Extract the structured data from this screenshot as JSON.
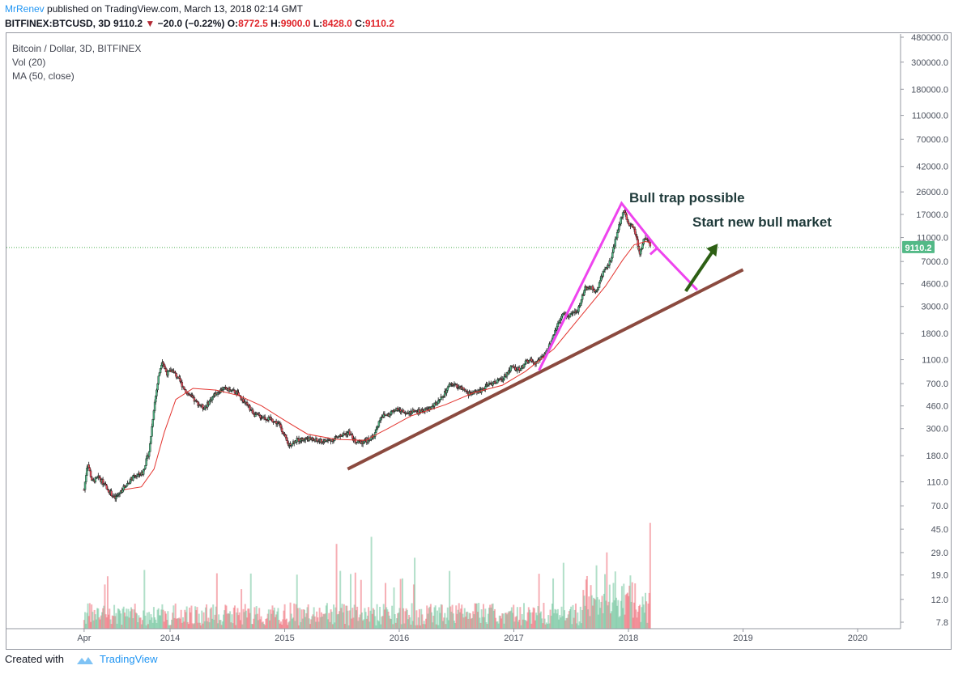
{
  "header": {
    "author": "MrRenev",
    "published_text": "published on TradingView.com, March 13, 2018 02:14 GMT"
  },
  "ticker": {
    "symbol": "BITFINEX:BTCUSD, 3D",
    "last": "9110.2",
    "change": "−20.0 (−0.22%)",
    "open_label": "O:",
    "open": "8772.5",
    "high_label": "H:",
    "high": "9900.0",
    "low_label": "L:",
    "low": "8428.0",
    "close_label": "C:",
    "close": "9110.2"
  },
  "legend": {
    "title": "Bitcoin / Dollar, 3D, BITFINEX",
    "vol": "Vol (20)",
    "ma": "MA (50, close)"
  },
  "footer": {
    "created_with": "Created with",
    "brand": "TradingView"
  },
  "colors": {
    "up": "#53b987",
    "down": "#eb4d5c",
    "ma": "#e3342f",
    "pink_line": "#ee44ee",
    "brown_line": "#8b4a3f",
    "arrow": "#2d5f14",
    "price_tag": "#53b987",
    "last_price_line": "#4caf50"
  },
  "chart_data": {
    "type": "candlestick",
    "scale": "log",
    "y_axis_ticks": [
      "480000.0",
      "300000.0",
      "180000.0",
      "110000.0",
      "70000.0",
      "42000.0",
      "26000.0",
      "17000.0",
      "11000.0",
      "7000.0",
      "4600.0",
      "3000.0",
      "1800.0",
      "1100.0",
      "700.0",
      "460.0",
      "300.0",
      "180.0",
      "110.0",
      "70.0",
      "45.0",
      "29.0",
      "19.0",
      "12.0",
      "7.8"
    ],
    "x_axis_ticks": [
      "Apr",
      "2014",
      "2015",
      "2016",
      "2017",
      "2018",
      "2019",
      "2020"
    ],
    "last_price": "9110.2",
    "series_price": [
      {
        "t": 2013.25,
        "v": 95
      },
      {
        "t": 2013.28,
        "v": 160
      },
      {
        "t": 2013.32,
        "v": 110
      },
      {
        "t": 2013.38,
        "v": 120
      },
      {
        "t": 2013.44,
        "v": 100
      },
      {
        "t": 2013.52,
        "v": 80
      },
      {
        "t": 2013.6,
        "v": 100
      },
      {
        "t": 2013.68,
        "v": 120
      },
      {
        "t": 2013.76,
        "v": 130
      },
      {
        "t": 2013.82,
        "v": 200
      },
      {
        "t": 2013.86,
        "v": 450
      },
      {
        "t": 2013.9,
        "v": 800
      },
      {
        "t": 2013.93,
        "v": 1100
      },
      {
        "t": 2013.97,
        "v": 850
      },
      {
        "t": 2014.02,
        "v": 900
      },
      {
        "t": 2014.08,
        "v": 750
      },
      {
        "t": 2014.14,
        "v": 600
      },
      {
        "t": 2014.22,
        "v": 500
      },
      {
        "t": 2014.3,
        "v": 440
      },
      {
        "t": 2014.38,
        "v": 560
      },
      {
        "t": 2014.46,
        "v": 640
      },
      {
        "t": 2014.52,
        "v": 620
      },
      {
        "t": 2014.58,
        "v": 590
      },
      {
        "t": 2014.66,
        "v": 480
      },
      {
        "t": 2014.74,
        "v": 390
      },
      {
        "t": 2014.82,
        "v": 370
      },
      {
        "t": 2014.9,
        "v": 350
      },
      {
        "t": 2014.96,
        "v": 320
      },
      {
        "t": 2015.03,
        "v": 220
      },
      {
        "t": 2015.1,
        "v": 240
      },
      {
        "t": 2015.2,
        "v": 250
      },
      {
        "t": 2015.3,
        "v": 235
      },
      {
        "t": 2015.4,
        "v": 240
      },
      {
        "t": 2015.48,
        "v": 260
      },
      {
        "t": 2015.56,
        "v": 280
      },
      {
        "t": 2015.62,
        "v": 230
      },
      {
        "t": 2015.7,
        "v": 235
      },
      {
        "t": 2015.78,
        "v": 260
      },
      {
        "t": 2015.84,
        "v": 380
      },
      {
        "t": 2015.9,
        "v": 390
      },
      {
        "t": 2015.96,
        "v": 430
      },
      {
        "t": 2016.05,
        "v": 410
      },
      {
        "t": 2016.15,
        "v": 410
      },
      {
        "t": 2016.25,
        "v": 430
      },
      {
        "t": 2016.35,
        "v": 500
      },
      {
        "t": 2016.45,
        "v": 700
      },
      {
        "t": 2016.52,
        "v": 660
      },
      {
        "t": 2016.6,
        "v": 580
      },
      {
        "t": 2016.7,
        "v": 610
      },
      {
        "t": 2016.8,
        "v": 700
      },
      {
        "t": 2016.9,
        "v": 760
      },
      {
        "t": 2016.98,
        "v": 960
      },
      {
        "t": 2017.05,
        "v": 900
      },
      {
        "t": 2017.12,
        "v": 1100
      },
      {
        "t": 2017.2,
        "v": 1050
      },
      {
        "t": 2017.28,
        "v": 1250
      },
      {
        "t": 2017.35,
        "v": 1800
      },
      {
        "t": 2017.42,
        "v": 2600
      },
      {
        "t": 2017.48,
        "v": 2500
      },
      {
        "t": 2017.55,
        "v": 2700
      },
      {
        "t": 2017.62,
        "v": 4200
      },
      {
        "t": 2017.68,
        "v": 4300
      },
      {
        "t": 2017.72,
        "v": 3900
      },
      {
        "t": 2017.78,
        "v": 5800
      },
      {
        "t": 2017.84,
        "v": 7000
      },
      {
        "t": 2017.88,
        "v": 9800
      },
      {
        "t": 2017.92,
        "v": 14000
      },
      {
        "t": 2017.96,
        "v": 19000
      },
      {
        "t": 2018.0,
        "v": 14000
      },
      {
        "t": 2018.04,
        "v": 13500
      },
      {
        "t": 2018.07,
        "v": 11000
      },
      {
        "t": 2018.1,
        "v": 8000
      },
      {
        "t": 2018.13,
        "v": 10500
      },
      {
        "t": 2018.17,
        "v": 10800
      },
      {
        "t": 2018.19,
        "v": 9110
      }
    ],
    "series_ma": [
      {
        "t": 2013.6,
        "v": 95
      },
      {
        "t": 2013.75,
        "v": 100
      },
      {
        "t": 2013.86,
        "v": 140
      },
      {
        "t": 2013.95,
        "v": 280
      },
      {
        "t": 2014.05,
        "v": 520
      },
      {
        "t": 2014.2,
        "v": 640
      },
      {
        "t": 2014.4,
        "v": 620
      },
      {
        "t": 2014.6,
        "v": 560
      },
      {
        "t": 2014.8,
        "v": 460
      },
      {
        "t": 2015.0,
        "v": 350
      },
      {
        "t": 2015.2,
        "v": 270
      },
      {
        "t": 2015.45,
        "v": 245
      },
      {
        "t": 2015.7,
        "v": 240
      },
      {
        "t": 2015.9,
        "v": 300
      },
      {
        "t": 2016.1,
        "v": 380
      },
      {
        "t": 2016.4,
        "v": 470
      },
      {
        "t": 2016.65,
        "v": 590
      },
      {
        "t": 2016.9,
        "v": 680
      },
      {
        "t": 2017.1,
        "v": 880
      },
      {
        "t": 2017.35,
        "v": 1350
      },
      {
        "t": 2017.6,
        "v": 2600
      },
      {
        "t": 2017.8,
        "v": 4400
      },
      {
        "t": 2017.95,
        "v": 7200
      },
      {
        "t": 2018.05,
        "v": 9600
      },
      {
        "t": 2018.15,
        "v": 10200
      },
      {
        "t": 2018.19,
        "v": 10000
      }
    ],
    "annotations": [
      {
        "text": "Bull trap possible"
      },
      {
        "text": "Start new bull market"
      }
    ]
  }
}
